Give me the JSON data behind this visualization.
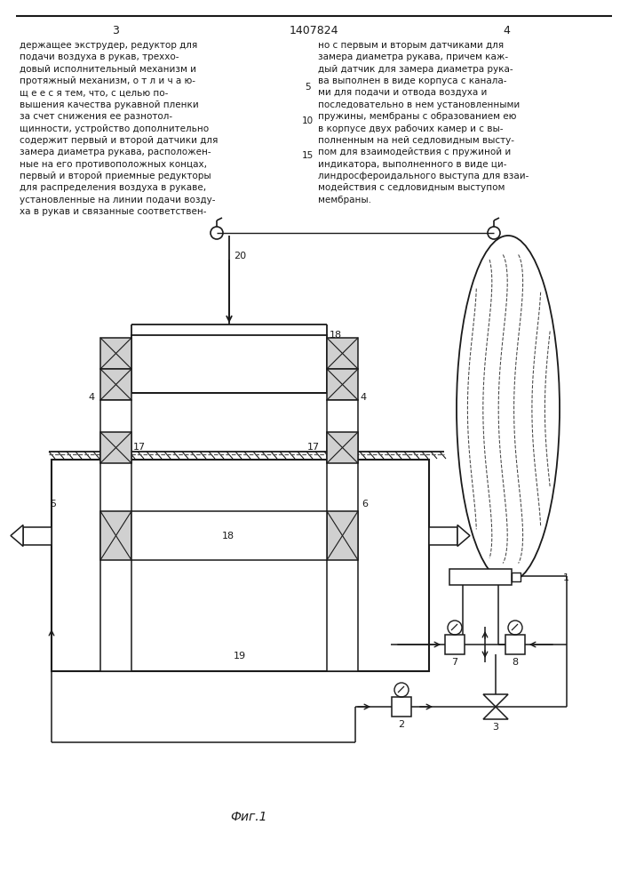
{
  "bg_color": "#ffffff",
  "line_color": "#1a1a1a",
  "text_color": "#1a1a1a",
  "page_title": "1407824",
  "page_left": "3",
  "page_right": "4",
  "fig_caption": "Фиг.1",
  "text_left": "держащее экструдер, редуктор для\nподачи воздуха в рукав, треххо-\nдовый исполнительный механизм и\nпротяжный механизм, о т л и ч а ю-\nщ е е с я тем, что, с целью по-\nвышения качества рукавной пленки\nза счет снижения ее разнотол-\nщинности, устройство дополнительно\nсодержит первый и второй датчики для\nзамера диаметра рукава, расположен-\nные на его противоположных концах,\nпервый и второй приемные редукторы\nдля распределения воздуха в рукаве,\nустановленные на линии подачи возду-\nха в рукав и связанные соответствен-",
  "text_right": "но с первым и вторым датчиками для\nзамера диаметра рукава, причем каж-\nдый датчик для замера диаметра рука-\nва выполнен в виде корпуса с канала-\nми для подачи и отвода воздуха и\nпоследовательно в нем установленными\nпружины, мембраны с образованием ею\nв корпусе двух рабочих камер и с вы-\nполненным на ней седловидным высту-\nпом для взаимодействия с пружиной и\nиндикатора, выполненного в виде ци-\nлиндросфероидального выступа для взаи-\nмодействия с седловидным выступом\nмембраны.",
  "line_number_5": "5",
  "line_number_10": "10",
  "line_number_15": "15"
}
